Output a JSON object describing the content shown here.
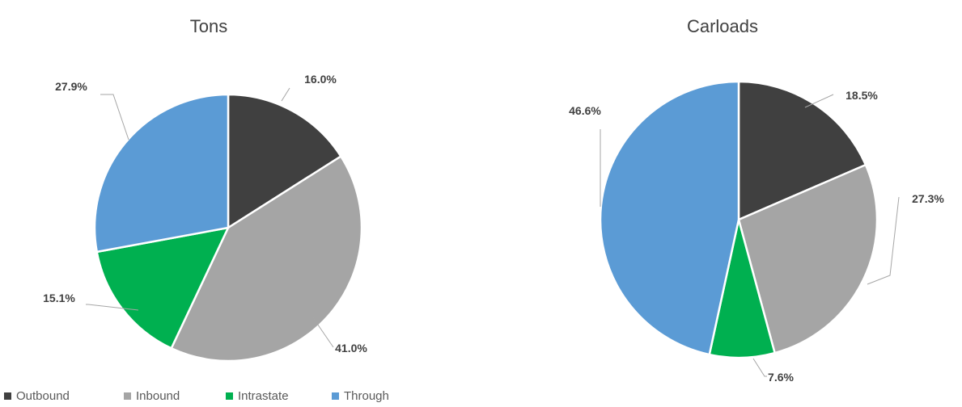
{
  "colors": {
    "Outbound": "#404040",
    "Inbound": "#a5a5a5",
    "Intrastate": "#00b050",
    "Through": "#5b9bd5"
  },
  "legend": [
    "Outbound",
    "Inbound",
    "Intrastate",
    "Through"
  ],
  "chart_data": [
    {
      "type": "pie",
      "title": "Tons",
      "legend_position": "bottom-left",
      "categories": [
        "Outbound",
        "Inbound",
        "Intrastate",
        "Through"
      ],
      "values": [
        16.0,
        41.0,
        15.1,
        27.9
      ],
      "labels": [
        "16.0%",
        "41.0%",
        "15.1%",
        "27.9%"
      ]
    },
    {
      "type": "pie",
      "title": "Carloads",
      "legend_position": "bottom-left",
      "categories": [
        "Outbound",
        "Inbound",
        "Intrastate",
        "Through"
      ],
      "values": [
        18.5,
        27.3,
        7.6,
        46.6
      ],
      "labels": [
        "18.5%",
        "27.3%",
        "7.6%",
        "46.6%"
      ]
    }
  ]
}
